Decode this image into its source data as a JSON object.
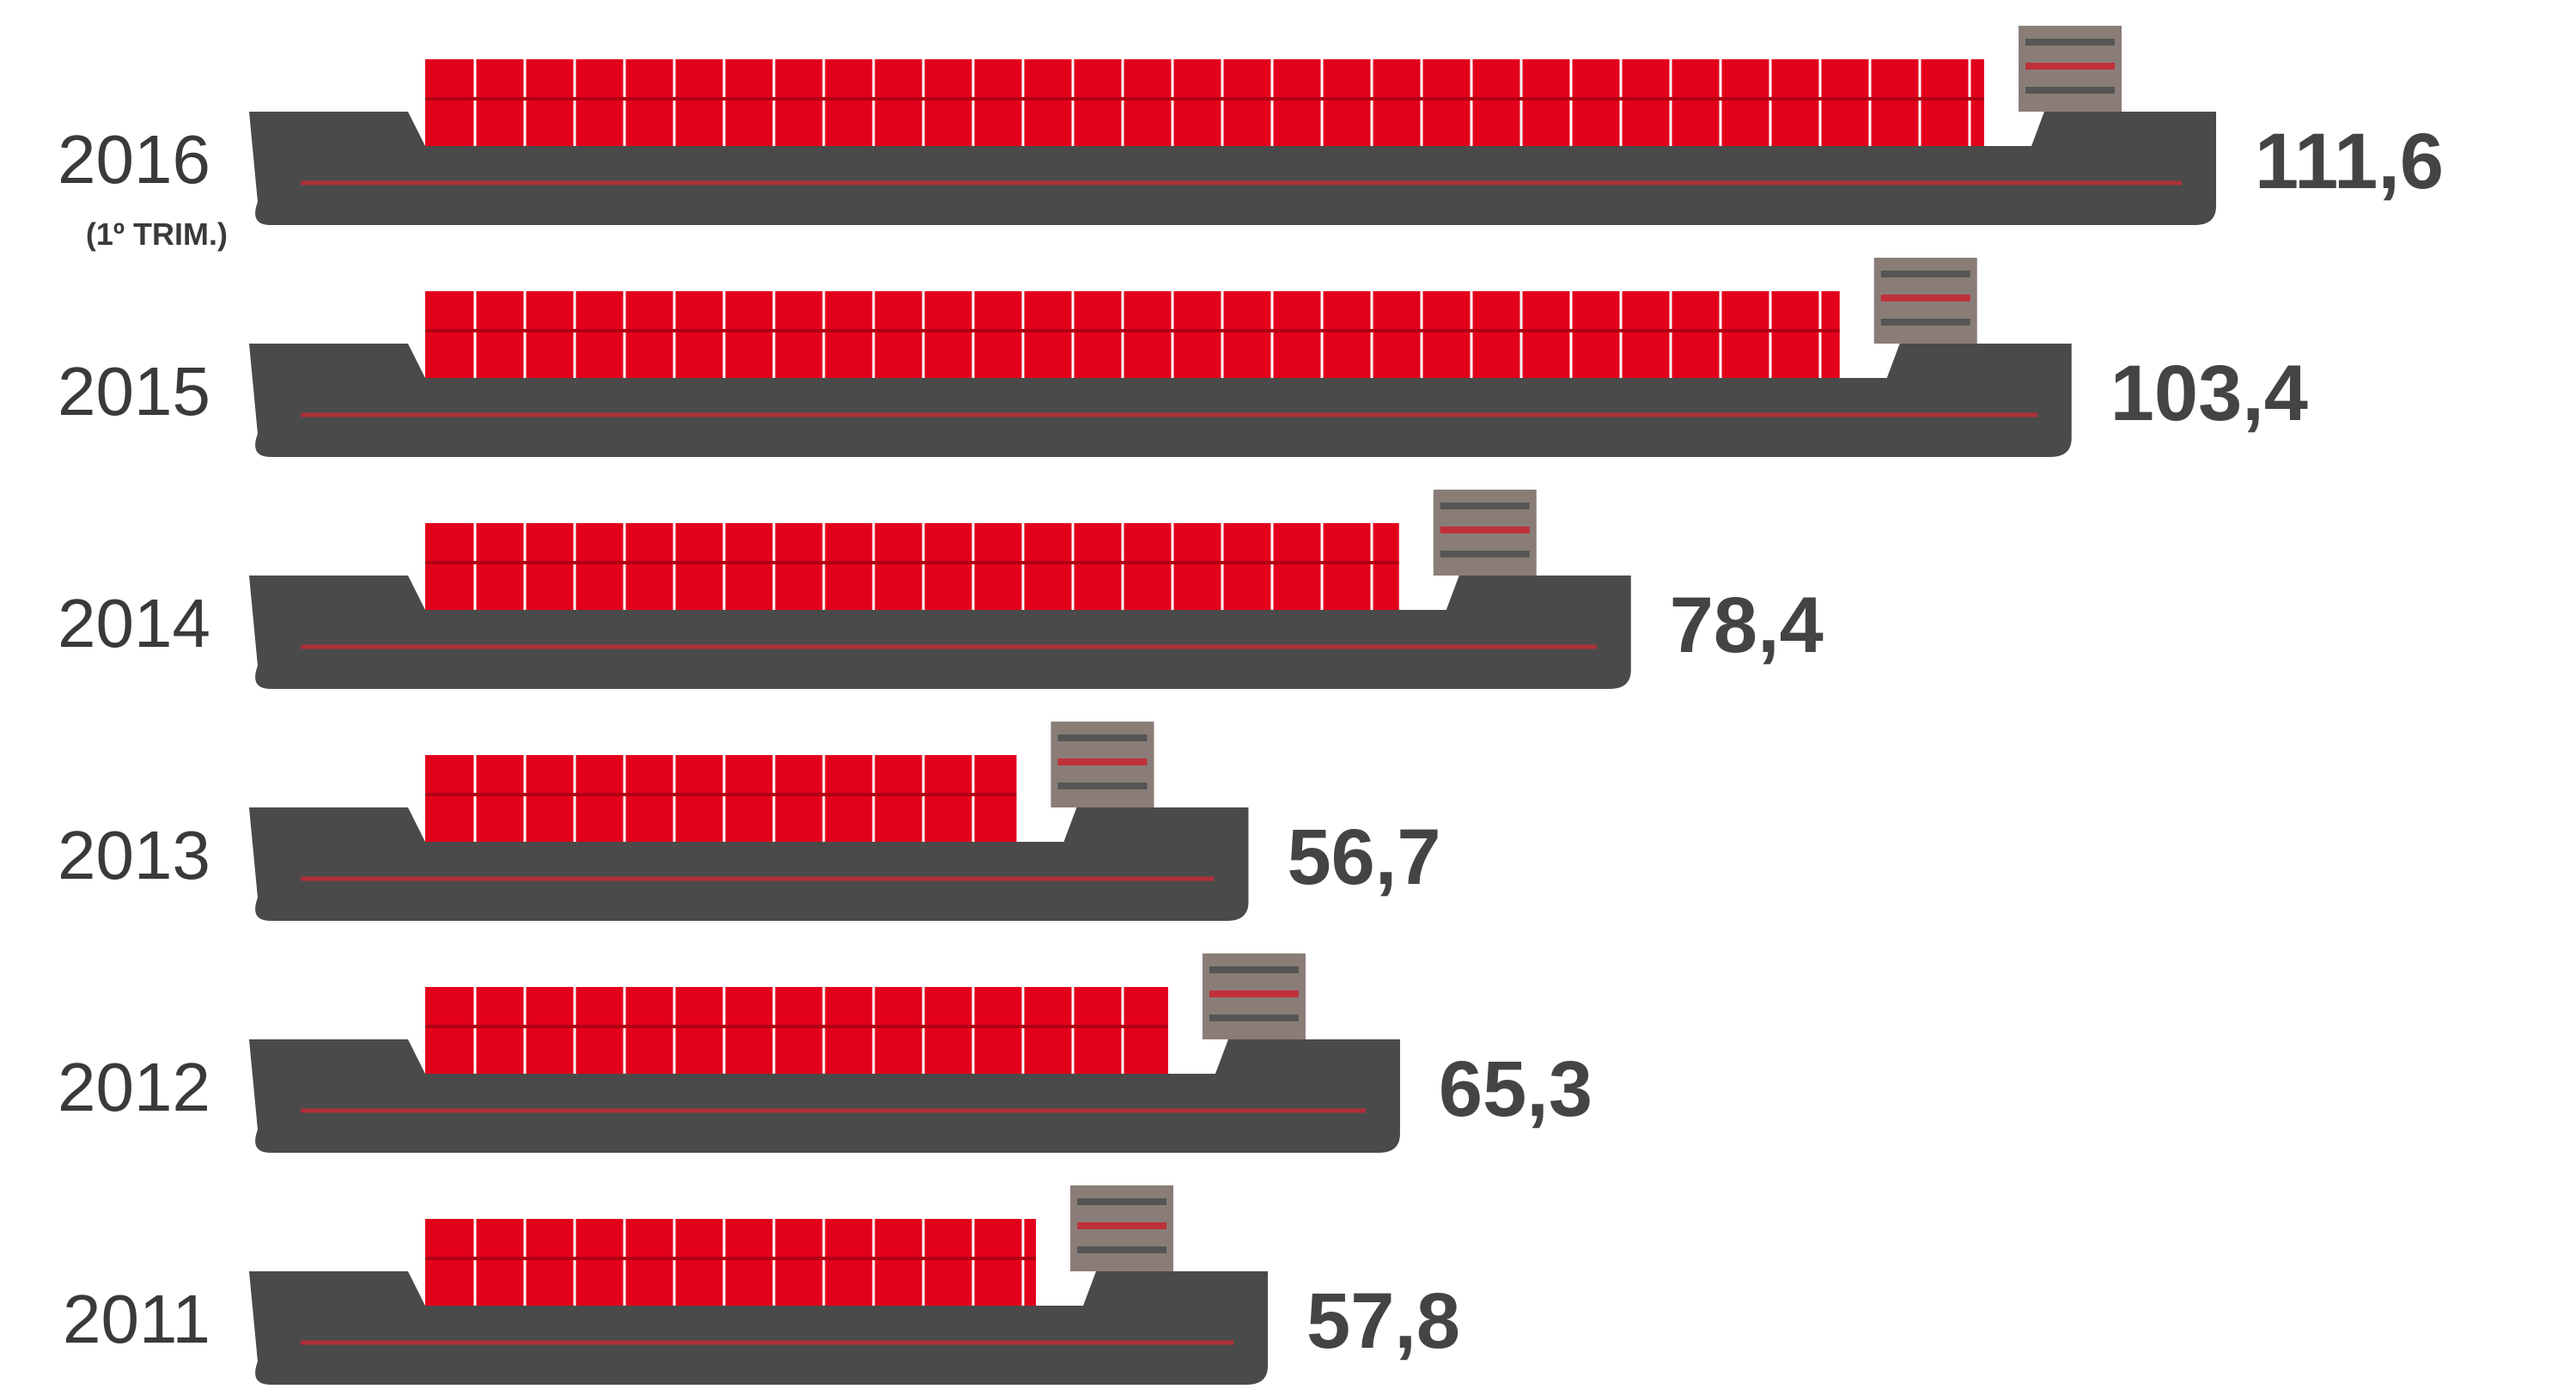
{
  "chart_data": {
    "type": "bar",
    "orientation": "horizontal",
    "categories": [
      "2016",
      "2015",
      "2014",
      "2013",
      "2012",
      "2011"
    ],
    "annotation": "(1º TRIM.)",
    "values": [
      111.6,
      103.4,
      78.4,
      56.7,
      65.3,
      57.8
    ],
    "value_labels": [
      "111,6",
      "103,4",
      "78,4",
      "56,7",
      "65,3",
      "57,8"
    ],
    "color": "#4a4a4a",
    "cargo_color": "#e3001b"
  }
}
